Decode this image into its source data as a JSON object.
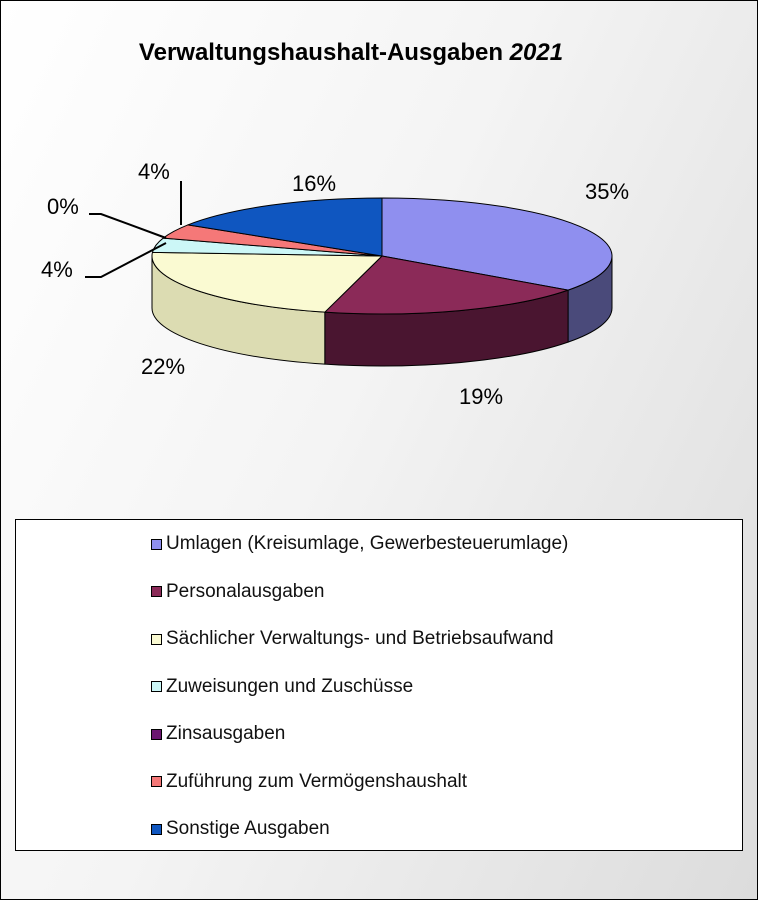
{
  "chart_data": {
    "type": "pie",
    "title": "Verwaltungshaushalt-Ausgaben",
    "title_year": "2021",
    "three_d": true,
    "legend_position": "bottom",
    "slices": [
      {
        "name": "Umlagen (Kreisumlage, Gewerbesteuerumlage)",
        "value": 35,
        "label": "35%",
        "color": "#8f8fef",
        "side": "#4a4a7a"
      },
      {
        "name": "Personalausgaben",
        "value": 19,
        "label": "19%",
        "color": "#8b2a58",
        "side": "#4a1530"
      },
      {
        "name": "Sächlicher Verwaltungs- und Betriebsaufwand",
        "value": 22,
        "label": "22%",
        "color": "#fafad2",
        "side": "#dcdcb2"
      },
      {
        "name": "Zuweisungen und Zuschüsse",
        "value": 4,
        "label": "4%",
        "color": "#ccf7f7",
        "side": "#9acaca"
      },
      {
        "name": "Zinsausgaben",
        "value": 0,
        "label": "0%",
        "color": "#6b1570",
        "side": "#3b0a3e"
      },
      {
        "name": "Zuführung zum Vermögenshaushalt",
        "value": 4,
        "label": "4%",
        "color": "#f57878",
        "side": "#b04f4f"
      },
      {
        "name": "Sonstige Ausgaben",
        "value": 16,
        "label": "16%",
        "color": "#0f56c0",
        "side": "#0a3a82"
      }
    ]
  }
}
